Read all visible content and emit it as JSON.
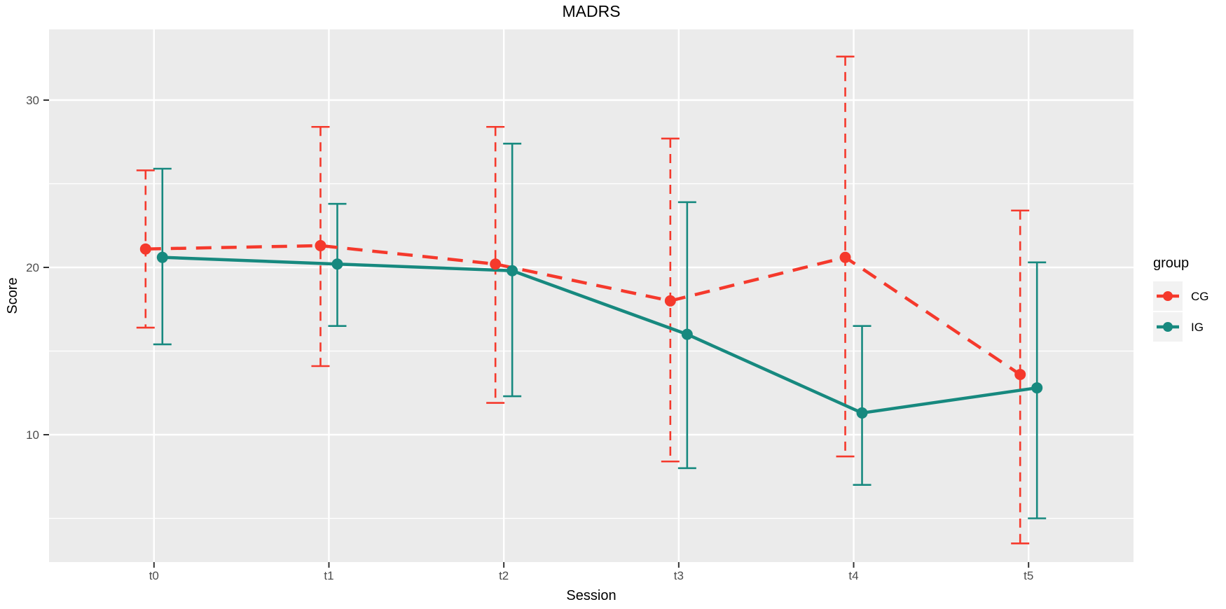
{
  "figure": {
    "title": "MADRS"
  },
  "chart_data": {
    "type": "line",
    "title": "MADRS",
    "xlabel": "Session",
    "ylabel": "Score",
    "x_categories": [
      "t0",
      "t1",
      "t2",
      "t3",
      "t4",
      "t5"
    ],
    "y_major_ticks": [
      10,
      20,
      30
    ],
    "y_minor_gridlines": [
      5,
      15,
      25
    ],
    "y_axis_range_visible": [
      2.4,
      34.2
    ],
    "grid": "ggplot-grey-background-white-gridlines",
    "error_bars": true,
    "legend": {
      "title": "group",
      "position": "right",
      "entries": [
        {
          "label": "CG",
          "color": "#F5392C",
          "linestyle": "dashed"
        },
        {
          "label": "IG",
          "color": "#17897F",
          "linestyle": "solid"
        }
      ]
    },
    "series": [
      {
        "name": "CG",
        "color": "#F5392C",
        "linestyle": "dashed",
        "marker": "circle",
        "means": [
          21.1,
          21.3,
          20.2,
          18.0,
          20.6,
          13.6
        ],
        "ci_low": [
          16.4,
          14.1,
          11.9,
          8.4,
          8.7,
          3.5
        ],
        "ci_high": [
          25.8,
          28.4,
          28.4,
          27.7,
          32.6,
          23.4
        ]
      },
      {
        "name": "IG",
        "color": "#17897F",
        "linestyle": "solid",
        "marker": "circle",
        "means": [
          20.6,
          20.2,
          19.8,
          16.0,
          11.3,
          12.8
        ],
        "ci_low": [
          15.4,
          16.5,
          12.3,
          8.0,
          7.0,
          5.0
        ],
        "ci_high": [
          25.9,
          23.8,
          27.4,
          23.9,
          16.5,
          20.3
        ]
      }
    ],
    "style_colors": {
      "plot_background": "#EBEBEB",
      "gridline": "#FFFFFF",
      "tick_label": "#4D4D4D",
      "text": "#000000",
      "legend_key_background": "#F2F2F2"
    }
  }
}
